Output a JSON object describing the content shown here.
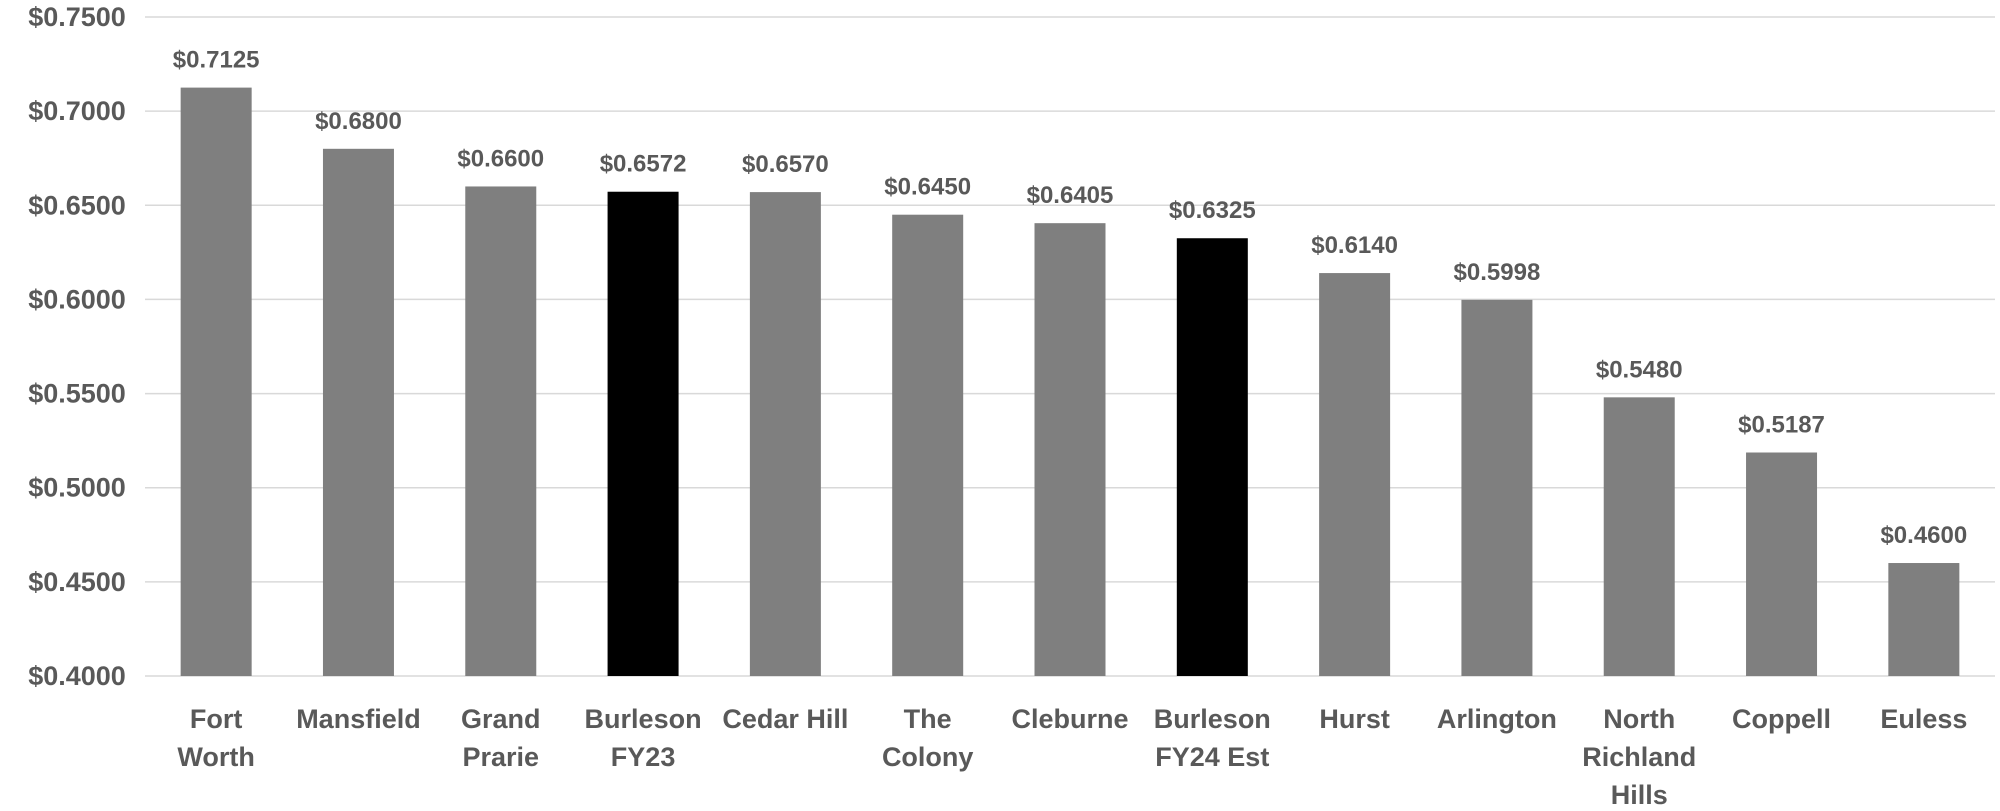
{
  "chart_data": {
    "type": "bar",
    "categories": [
      [
        "Fort",
        "Worth"
      ],
      [
        "Mansfield"
      ],
      [
        "Grand",
        "Prarie"
      ],
      [
        "Burleson",
        "FY23"
      ],
      [
        "Cedar Hill"
      ],
      [
        "The",
        "Colony"
      ],
      [
        "Cleburne"
      ],
      [
        "Burleson",
        "FY24 Est"
      ],
      [
        "Hurst"
      ],
      [
        "Arlington"
      ],
      [
        "North",
        "Richland",
        "Hills"
      ],
      [
        "Coppell"
      ],
      [
        "Euless"
      ]
    ],
    "values": [
      0.7125,
      0.68,
      0.66,
      0.6572,
      0.657,
      0.645,
      0.6405,
      0.6325,
      0.614,
      0.5998,
      0.548,
      0.5187,
      0.46
    ],
    "data_labels": [
      "$0.7125",
      "$0.6800",
      "$0.6600",
      "$0.6572",
      "$0.6570",
      "$0.6450",
      "$0.6405",
      "$0.6325",
      "$0.6140",
      "$0.5998",
      "$0.5480",
      "$0.5187",
      "$0.4600"
    ],
    "highlighted": [
      false,
      false,
      false,
      true,
      false,
      false,
      false,
      true,
      false,
      false,
      false,
      false,
      false
    ],
    "ylim": [
      0.4,
      0.75
    ],
    "yticks": [
      0.4,
      0.45,
      0.5,
      0.55,
      0.6,
      0.65,
      0.7,
      0.75
    ],
    "ytick_labels": [
      "$0.4000",
      "$0.4500",
      "$0.5000",
      "$0.5500",
      "$0.6000",
      "$0.6500",
      "$0.7000",
      "$0.7500"
    ],
    "title": "",
    "xlabel": "",
    "ylabel": "",
    "grid": true,
    "legend": "none",
    "colors": {
      "bar": "#7f7f7f",
      "highlight_bar": "#000000",
      "grid": "#d9d9d9",
      "text": "#595959"
    }
  }
}
